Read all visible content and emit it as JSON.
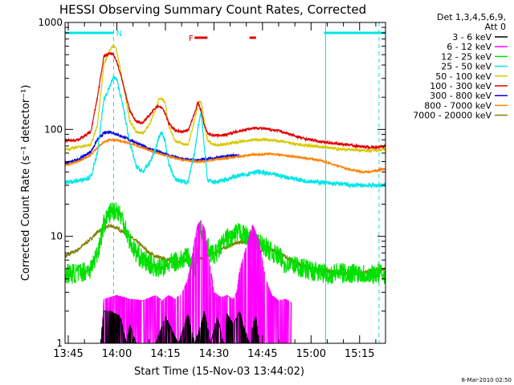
{
  "chart_data": {
    "type": "line",
    "title": "HESSI Observing Summary Count Rates, Corrected",
    "xlabel": "Start Time (15-Nov-03 13:44:02)",
    "ylabel": "Corrected Count Rate (s⁻¹ detector⁻¹)",
    "y_scale": "log",
    "ylim": [
      1,
      1000
    ],
    "xlim_minutes_after_13_44_02": [
      0,
      99
    ],
    "x_tick_labels": [
      "13:45",
      "14:00",
      "14:15",
      "14:30",
      "14:45",
      "15:00",
      "15:15"
    ],
    "x_tick_minutes": [
      1,
      16,
      31,
      46,
      61,
      76,
      91
    ],
    "y_tick_labels": [
      "1",
      "10",
      "100",
      "1000"
    ],
    "y_tick_values": [
      1,
      10,
      100,
      1000
    ],
    "legend_header": [
      "Det 1,3,4,5,6,9,",
      "Att 0"
    ],
    "legend_position": "right",
    "annotations": {
      "flags": [
        {
          "label": "N",
          "color": "#00e5e5",
          "intervals": [
            [
              0,
              15
            ],
            [
              80,
              99
            ]
          ]
        },
        {
          "label": "F",
          "color": "#e00000",
          "intervals": [
            [
              40,
              44
            ],
            [
              57,
              59
            ]
          ]
        }
      ],
      "vertical_lines": [
        {
          "minute": 15,
          "color": "#00e5e5",
          "style": "dashed"
        },
        {
          "minute": 80.5,
          "color": "#00e5e5",
          "style": "solid"
        },
        {
          "minute": 97,
          "color": "#00e5e5",
          "style": "dashed"
        }
      ]
    },
    "series": [
      {
        "name": "3 - 6 keV",
        "color": "#000000",
        "x": [
          0,
          11,
          12,
          14,
          17,
          19,
          20,
          22,
          25,
          28,
          31,
          35,
          38,
          40,
          42,
          43,
          45,
          47,
          49,
          50,
          52,
          54,
          55,
          57,
          58,
          59,
          60
        ],
        "y": [
          1,
          1,
          2,
          2,
          1.8,
          1,
          1.5,
          1,
          1,
          1,
          1.8,
          1,
          1.9,
          1,
          1.5,
          2,
          1,
          1.8,
          1,
          1.9,
          1.5,
          2,
          1.5,
          1,
          1.5,
          1.8,
          1
        ]
      },
      {
        "name": "6 - 12 keV",
        "color": "#ff00ff",
        "x": [
          0,
          11,
          12,
          16,
          20,
          24,
          28,
          30,
          32,
          34,
          36,
          38,
          39,
          40,
          41,
          42,
          43,
          44,
          45,
          46,
          48,
          50,
          52,
          53,
          54,
          56,
          58,
          60,
          62,
          64,
          66,
          68,
          70
        ],
        "y": [
          1,
          1,
          2.6,
          2.8,
          2.6,
          2.5,
          2.8,
          2.5,
          2.8,
          2.6,
          2.9,
          4,
          6,
          9,
          13,
          14,
          12,
          8,
          5,
          3,
          2.7,
          2.8,
          2.6,
          3,
          5,
          8,
          13,
          9,
          4,
          2.8,
          2.5,
          2.6,
          2.4
        ]
      },
      {
        "name": "12 - 25 keV",
        "color": "#00e000",
        "x": [
          0,
          4,
          8,
          10,
          12,
          14,
          16,
          18,
          20,
          22,
          24,
          26,
          28,
          30,
          32,
          34,
          36,
          38,
          40,
          42,
          44,
          46,
          48,
          50,
          52,
          54,
          56,
          58,
          60,
          62,
          64,
          66,
          68,
          70,
          72,
          74,
          76,
          78,
          80,
          82,
          84,
          86,
          88,
          90,
          92,
          94,
          96,
          99
        ],
        "y": [
          4.5,
          4.5,
          5,
          7,
          13,
          17,
          18,
          14,
          9,
          7,
          6,
          5.5,
          5.2,
          5.0,
          5.5,
          5.8,
          6.0,
          6.5,
          5.0,
          12,
          8,
          6.5,
          8,
          9.5,
          10,
          11,
          10,
          9,
          8.5,
          8,
          7,
          6.5,
          5.5,
          5.5,
          5.2,
          5.0,
          4.8,
          4.6,
          4.5,
          4.4,
          4.6,
          4.5,
          4.5,
          4.6,
          4.5,
          4.4,
          4.5,
          4.5
        ]
      },
      {
        "name": "25 - 50 keV",
        "color": "#00e5e5",
        "x": [
          0,
          4,
          8,
          10,
          12,
          14,
          15,
          16,
          18,
          20,
          22,
          24,
          26,
          28,
          29,
          30,
          31,
          32,
          34,
          36,
          38,
          40,
          41,
          42,
          43,
          44,
          46,
          48,
          50,
          52,
          54,
          56,
          58,
          60,
          62,
          64,
          66,
          68,
          70,
          72,
          74,
          76,
          78,
          80,
          82,
          84,
          86,
          88,
          90,
          92,
          94,
          96,
          99
        ],
        "y": [
          32,
          33,
          36,
          60,
          190,
          260,
          310,
          290,
          160,
          75,
          45,
          40,
          48,
          65,
          85,
          95,
          75,
          48,
          34,
          33,
          32,
          60,
          100,
          150,
          70,
          34,
          32,
          33,
          34,
          36,
          37,
          38,
          40,
          40,
          39,
          38,
          37,
          36,
          35,
          34,
          33,
          33,
          32,
          32,
          31,
          31,
          31,
          30,
          30,
          30,
          30,
          30,
          30
        ]
      },
      {
        "name": "50 - 100 keV",
        "color": "#d8c800",
        "x": [
          0,
          4,
          8,
          10,
          12,
          14,
          15,
          16,
          18,
          20,
          22,
          24,
          26,
          28,
          29,
          30,
          31,
          32,
          34,
          36,
          38,
          40,
          41,
          42,
          43,
          44,
          46,
          48,
          50,
          52,
          54,
          56,
          58,
          60,
          62,
          64,
          66,
          68,
          70,
          72,
          74,
          76,
          78,
          80,
          82,
          84,
          86,
          88,
          90,
          92,
          94,
          96,
          99
        ],
        "y": [
          65,
          68,
          72,
          110,
          400,
          560,
          620,
          540,
          260,
          120,
          95,
          92,
          110,
          155,
          190,
          195,
          175,
          110,
          78,
          74,
          72,
          120,
          170,
          185,
          120,
          78,
          72,
          72,
          73,
          75,
          77,
          78,
          80,
          80,
          80,
          79,
          78,
          76,
          74,
          72,
          71,
          70,
          69,
          68,
          67,
          66,
          65,
          65,
          64,
          64,
          63,
          64,
          65
        ]
      },
      {
        "name": "100 - 300 keV",
        "color": "#e00000",
        "x": [
          0,
          4,
          8,
          10,
          12,
          14,
          15,
          16,
          18,
          20,
          22,
          24,
          26,
          28,
          29,
          30,
          31,
          32,
          34,
          36,
          38,
          40,
          41,
          42,
          43,
          44,
          46,
          48,
          50,
          52,
          54,
          56,
          58,
          60,
          62,
          64,
          66,
          68,
          70,
          72,
          74,
          76,
          78,
          80,
          82,
          84,
          86,
          88,
          90,
          92,
          94,
          96,
          99
        ],
        "y": [
          78,
          80,
          95,
          200,
          480,
          520,
          500,
          430,
          260,
          150,
          118,
          115,
          135,
          160,
          165,
          158,
          140,
          115,
          98,
          95,
          98,
          140,
          180,
          150,
          110,
          92,
          88,
          88,
          90,
          93,
          97,
          100,
          103,
          103,
          101,
          99,
          97,
          93,
          89,
          85,
          82,
          80,
          78,
          76,
          75,
          74,
          72,
          72,
          70,
          69,
          68,
          68,
          70
        ]
      },
      {
        "name": "300 - 800 keV",
        "color": "#0000e0",
        "x": [
          0,
          4,
          8,
          10,
          12,
          14,
          16,
          18,
          20,
          22,
          24,
          26,
          28,
          30,
          32,
          34,
          36,
          38,
          40,
          42,
          44,
          46,
          48,
          50,
          52,
          54
        ],
        "y": [
          48,
          52,
          62,
          80,
          92,
          95,
          90,
          85,
          80,
          75,
          70,
          66,
          63,
          60,
          57,
          55,
          53,
          52,
          51,
          52,
          53,
          54,
          55,
          56,
          57,
          57
        ]
      },
      {
        "name": "800 - 7000 keV",
        "color": "#ff8000",
        "x": [
          0,
          4,
          8,
          10,
          12,
          14,
          16,
          18,
          20,
          22,
          24,
          26,
          28,
          30,
          32,
          34,
          36,
          38,
          40,
          42,
          44,
          46,
          48,
          50,
          52,
          54,
          56,
          58,
          60,
          62,
          64,
          66,
          68,
          70,
          72,
          74,
          76,
          78,
          80,
          82,
          84,
          86,
          88,
          90,
          92,
          94,
          96,
          99
        ],
        "y": [
          46,
          50,
          58,
          68,
          76,
          80,
          79,
          77,
          74,
          71,
          67,
          64,
          61,
          58,
          56,
          54,
          52,
          51,
          50,
          50,
          51,
          52,
          53,
          54,
          55,
          56,
          57,
          58,
          58,
          59,
          59,
          58,
          57,
          56,
          55,
          54,
          53,
          52,
          50,
          48,
          46,
          44,
          42,
          41,
          40,
          40,
          41,
          43
        ]
      },
      {
        "name": "7000 - 20000 keV",
        "color": "#808000",
        "x": [
          0,
          4,
          8,
          10,
          12,
          14,
          16,
          18,
          20,
          22,
          24,
          26,
          28,
          30,
          32,
          34,
          36,
          38,
          40,
          42,
          44,
          46,
          48,
          50,
          52,
          54,
          56,
          58,
          60,
          62,
          64,
          66,
          68,
          70,
          72,
          74,
          76,
          78,
          80,
          82,
          84,
          86,
          88,
          90,
          92,
          94,
          96,
          99
        ],
        "y": [
          6.5,
          7.5,
          9.5,
          11,
          12,
          12.5,
          12,
          11,
          10,
          9,
          8,
          7,
          6.5,
          6.2,
          6.0,
          5.8,
          5.8,
          6.0,
          6.2,
          6.3,
          6.5,
          7.0,
          7.5,
          8,
          8.5,
          8.8,
          9,
          8.8,
          8.5,
          8,
          7.5,
          7,
          6.5,
          6,
          5.6,
          5.3,
          5.0,
          4.9,
          4.8,
          4.7,
          4.7,
          4.6,
          4.6,
          4.6,
          4.6,
          4.7,
          4.8,
          5.0
        ]
      }
    ]
  },
  "footer": {
    "timestamp": "8-Mar-2010 02:50"
  }
}
